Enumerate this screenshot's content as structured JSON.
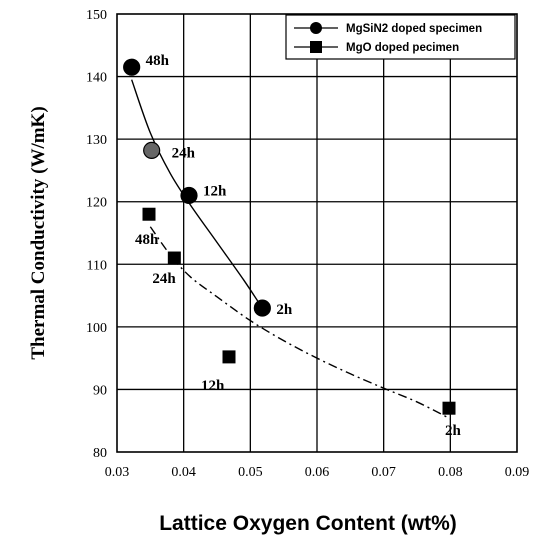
{
  "chart_data": {
    "type": "scatter",
    "xlabel": "Lattice Oxygen Content (wt%)",
    "ylabel": "Thermal Conductivity (W/mK)",
    "xlim": [
      0.03,
      0.09
    ],
    "ylim": [
      80,
      150
    ],
    "xticks": [
      "0.03",
      "0.04",
      "0.05",
      "0.06",
      "0.07",
      "0.08",
      "0.09"
    ],
    "yticks": [
      "80",
      "90",
      "100",
      "110",
      "120",
      "130",
      "140",
      "150"
    ],
    "grid": true,
    "legend_position": "top-right",
    "series": [
      {
        "name": "MgSiN2 doped specimen",
        "marker": "circle",
        "line_style": "solid",
        "points": [
          {
            "x": 0.0322,
            "y": 141.5,
            "label": "48h"
          },
          {
            "x": 0.0352,
            "y": 128.2,
            "label": "24h"
          },
          {
            "x": 0.0408,
            "y": 121.0,
            "label": "12h"
          },
          {
            "x": 0.0518,
            "y": 103.0,
            "label": "2h"
          }
        ],
        "trend": [
          [
            0.0322,
            139.5
          ],
          [
            0.035,
            131.0
          ],
          [
            0.038,
            124.5
          ],
          [
            0.041,
            119.5
          ],
          [
            0.045,
            113.5
          ],
          [
            0.049,
            107.5
          ],
          [
            0.0518,
            103.0
          ]
        ]
      },
      {
        "name": "MgO doped pecimen",
        "marker": "square",
        "line_style": "dash-dot",
        "points": [
          {
            "x": 0.0348,
            "y": 118.0,
            "label": "48h"
          },
          {
            "x": 0.0386,
            "y": 111.0,
            "label": "24h"
          },
          {
            "x": 0.0468,
            "y": 95.2,
            "label": "12h"
          },
          {
            "x": 0.0798,
            "y": 87.0,
            "label": "2h"
          }
        ],
        "trend": [
          [
            0.035,
            116.0
          ],
          [
            0.038,
            111.5
          ],
          [
            0.041,
            108.0
          ],
          [
            0.045,
            104.8
          ],
          [
            0.05,
            101.0
          ],
          [
            0.055,
            97.8
          ],
          [
            0.06,
            95.0
          ],
          [
            0.065,
            92.5
          ],
          [
            0.07,
            90.2
          ],
          [
            0.075,
            88.0
          ],
          [
            0.08,
            85.3
          ]
        ]
      }
    ]
  }
}
